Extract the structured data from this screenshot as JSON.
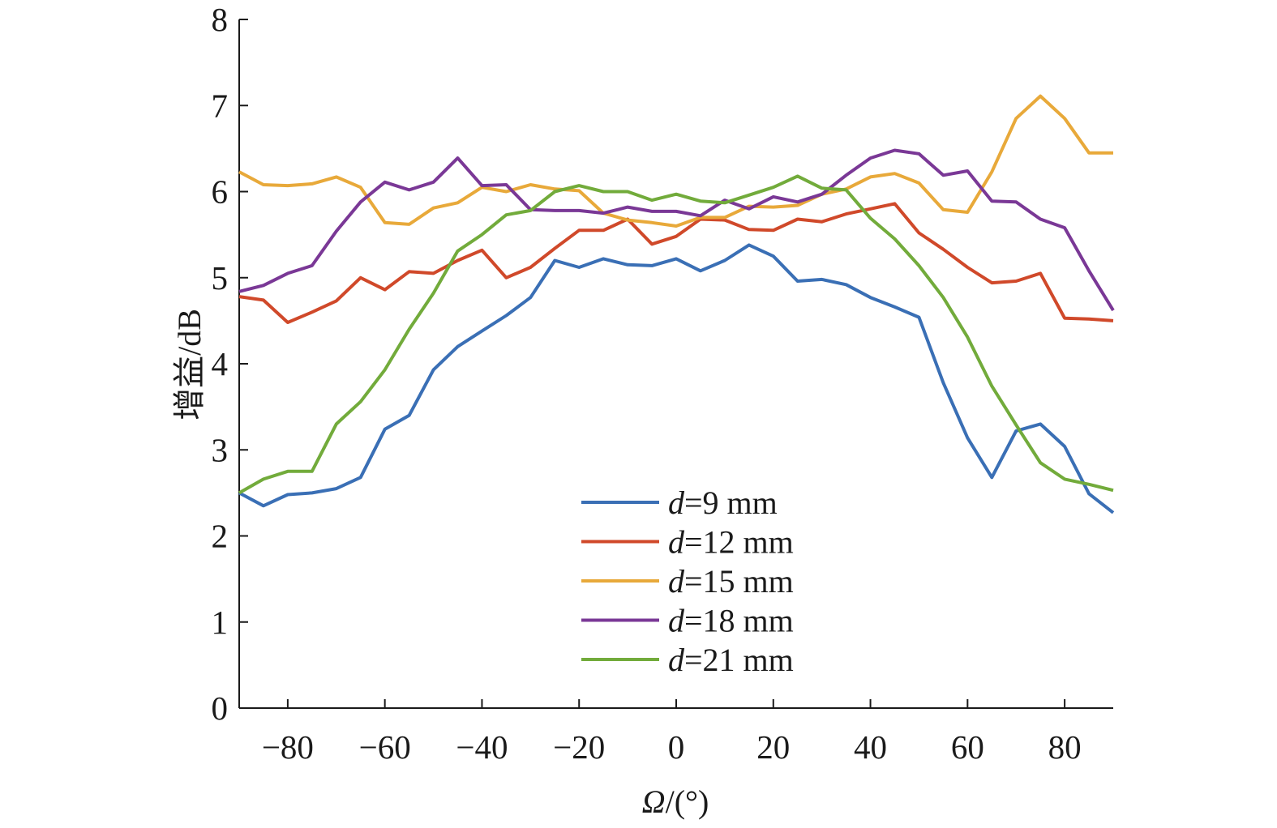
{
  "chart_data": {
    "type": "line",
    "title": "",
    "xlabel": "Ω/(°)",
    "xlabel_parts": {
      "symbol": "Ω",
      "unit": "/(°)"
    },
    "ylabel": "增益/dB",
    "xlim": [
      -90,
      90
    ],
    "ylim": [
      0,
      8
    ],
    "xticks": [
      -80,
      -60,
      -40,
      -20,
      0,
      20,
      40,
      60,
      80
    ],
    "xtick_labels": [
      "−80",
      "−60",
      "−40",
      "−20",
      "0",
      "20",
      "40",
      "60",
      "80"
    ],
    "yticks": [
      0,
      1,
      2,
      3,
      4,
      5,
      6,
      7,
      8
    ],
    "ytick_labels": [
      "0",
      "1",
      "2",
      "3",
      "4",
      "5",
      "6",
      "7",
      "8"
    ],
    "grid": false,
    "legend_position": "bottom-right",
    "x": [
      -90,
      -85,
      -80,
      -75,
      -70,
      -65,
      -60,
      -55,
      -50,
      -45,
      -40,
      -35,
      -30,
      -25,
      -20,
      -15,
      -10,
      -5,
      0,
      5,
      10,
      15,
      20,
      25,
      30,
      35,
      40,
      45,
      50,
      55,
      60,
      65,
      70,
      75,
      80,
      85,
      90
    ],
    "series": [
      {
        "name": "d=9 mm",
        "var": "d",
        "label_rest": "=9 mm",
        "color": "#3a6fb5",
        "values": [
          2.5,
          2.35,
          2.48,
          2.5,
          2.55,
          2.68,
          3.24,
          3.4,
          3.93,
          4.2,
          4.38,
          4.56,
          4.77,
          5.2,
          5.12,
          5.22,
          5.15,
          5.14,
          5.22,
          5.08,
          5.2,
          5.38,
          5.25,
          4.96,
          4.98,
          4.92,
          4.77,
          4.66,
          4.54,
          3.78,
          3.14,
          2.68,
          3.22,
          3.3,
          3.04,
          2.49,
          2.27
        ]
      },
      {
        "name": "d=12 mm",
        "var": "d",
        "label_rest": "=12 mm",
        "color": "#d0492a",
        "values": [
          4.78,
          4.74,
          4.48,
          4.6,
          4.73,
          5.0,
          4.86,
          5.07,
          5.05,
          5.2,
          5.32,
          5.0,
          5.12,
          5.34,
          5.55,
          5.55,
          5.68,
          5.39,
          5.48,
          5.68,
          5.67,
          5.56,
          5.55,
          5.68,
          5.65,
          5.74,
          5.8,
          5.86,
          5.52,
          5.33,
          5.12,
          4.94,
          4.96,
          5.05,
          4.53,
          4.52,
          4.5
        ]
      },
      {
        "name": "d=15 mm",
        "var": "d",
        "label_rest": "=15 mm",
        "color": "#e8a93a",
        "values": [
          6.23,
          6.08,
          6.07,
          6.09,
          6.17,
          6.05,
          5.64,
          5.62,
          5.81,
          5.87,
          6.05,
          6.0,
          6.08,
          6.03,
          6.01,
          5.75,
          5.67,
          5.64,
          5.6,
          5.7,
          5.7,
          5.83,
          5.82,
          5.84,
          5.97,
          6.03,
          6.17,
          6.21,
          6.1,
          5.79,
          5.76,
          6.23,
          6.85,
          7.11,
          6.85,
          6.45,
          6.45
        ]
      },
      {
        "name": "d=18 mm",
        "var": "d",
        "label_rest": "=18 mm",
        "color": "#7a3896",
        "values": [
          4.84,
          4.91,
          5.05,
          5.14,
          5.54,
          5.88,
          6.11,
          6.02,
          6.11,
          6.39,
          6.07,
          6.08,
          5.79,
          5.78,
          5.78,
          5.75,
          5.82,
          5.77,
          5.77,
          5.72,
          5.9,
          5.8,
          5.94,
          5.88,
          5.97,
          6.19,
          6.39,
          6.48,
          6.44,
          6.19,
          6.24,
          5.89,
          5.88,
          5.68,
          5.58,
          5.08,
          4.62
        ]
      },
      {
        "name": "d=21 mm",
        "var": "d",
        "label_rest": "=21 mm",
        "color": "#72ab3b",
        "values": [
          2.5,
          2.66,
          2.75,
          2.75,
          3.3,
          3.56,
          3.93,
          4.4,
          4.82,
          5.31,
          5.5,
          5.73,
          5.78,
          6.0,
          6.07,
          6.0,
          6.0,
          5.9,
          5.97,
          5.89,
          5.87,
          5.96,
          6.05,
          6.18,
          6.04,
          6.02,
          5.69,
          5.45,
          5.14,
          4.77,
          4.31,
          3.74,
          3.29,
          2.85,
          2.66,
          2.6,
          2.53
        ]
      }
    ]
  }
}
